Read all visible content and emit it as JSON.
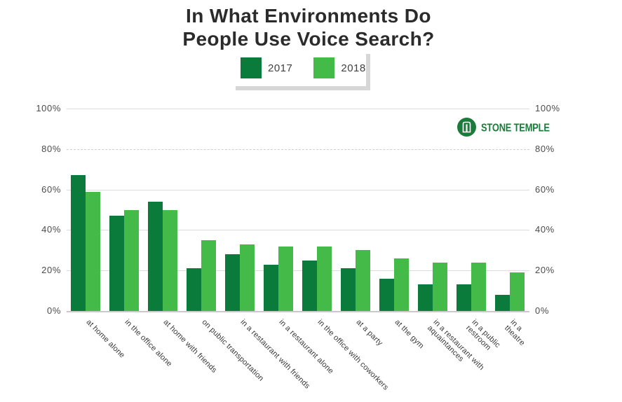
{
  "title": {
    "line1": "In What Environments Do",
    "line2": "People Use Voice Search?"
  },
  "legend": {
    "items": [
      {
        "label": "2017",
        "color": "#0b7b3c"
      },
      {
        "label": "2018",
        "color": "#44ba49"
      }
    ]
  },
  "brand": {
    "name": "STONE TEMPLE"
  },
  "chart_data": {
    "type": "bar",
    "title": "In What Environments Do People Use Voice Search?",
    "categories": [
      "at home alone",
      "in the office alone",
      "at home with friends",
      "on public transportation",
      "in a restaurant with friends",
      "in a restaurant alone",
      "in the office with coworkers",
      "at a party",
      "at the gym",
      "in a restaurant with\naquaintances",
      "in a public restroom",
      "in a theatre"
    ],
    "series": [
      {
        "name": "2017",
        "color": "#0b7b3c",
        "values": [
          67,
          47,
          54,
          21,
          28,
          23,
          25,
          21,
          16,
          13,
          13,
          8
        ]
      },
      {
        "name": "2018",
        "color": "#44ba49",
        "values": [
          59,
          50,
          50,
          35,
          33,
          32,
          32,
          30,
          26,
          24,
          24,
          19
        ]
      }
    ],
    "xlabel": "",
    "ylabel": "",
    "ylim": [
      0,
      100
    ],
    "yticks": [
      "100%",
      "80%",
      "60%",
      "40%",
      "20%",
      "0%"
    ],
    "grid": true,
    "legend_position": "top"
  }
}
